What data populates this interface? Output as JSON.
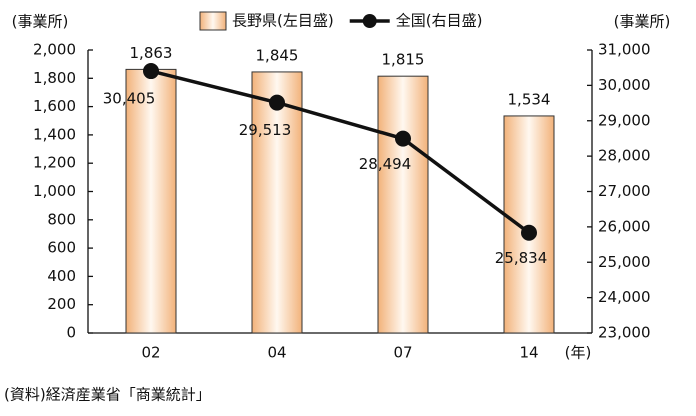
{
  "chart_data": {
    "type": "combo",
    "categories": [
      "02",
      "04",
      "07",
      "14"
    ],
    "x_unit": "(年)",
    "y_unit": "(事業所)",
    "y2_unit": "(事業所)",
    "source": "(資料)経済産業省「商業統計」",
    "series": [
      {
        "name": "長野県(左目盛)",
        "type": "bar",
        "color": "#f2b27a",
        "values": [
          1863,
          1845,
          1815,
          1534
        ],
        "value_labels": [
          "1,863",
          "1,845",
          "1,815",
          "1,534"
        ]
      },
      {
        "name": "全国(右目盛)",
        "type": "line",
        "axis": "y2",
        "color": "#111111",
        "values": [
          30405,
          29513,
          28494,
          25834
        ],
        "value_labels": [
          "30,405",
          "29,513",
          "28,494",
          "25,834"
        ]
      }
    ],
    "ylim": [
      0,
      2000
    ],
    "yticks": [
      0,
      200,
      400,
      600,
      800,
      {
        "value": 1000,
        "label": "1,000"
      },
      {
        "value": 1200,
        "label": "1,200"
      },
      {
        "value": 1400,
        "label": "1,400"
      },
      {
        "value": 1600,
        "label": "1,600"
      },
      {
        "value": 1800,
        "label": "1,800"
      },
      {
        "value": 2000,
        "label": "2,000"
      }
    ],
    "y2lim": [
      23000,
      31000
    ],
    "y2ticks": [
      {
        "value": 23000,
        "label": "23,000"
      },
      {
        "value": 24000,
        "label": "24,000"
      },
      {
        "value": 25000,
        "label": "25,000"
      },
      {
        "value": 26000,
        "label": "26,000"
      },
      {
        "value": 27000,
        "label": "27,000"
      },
      {
        "value": 28000,
        "label": "28,000"
      },
      {
        "value": 29000,
        "label": "29,000"
      },
      {
        "value": 30000,
        "label": "30,000"
      },
      {
        "value": 31000,
        "label": "31,000"
      }
    ],
    "grid": false
  }
}
